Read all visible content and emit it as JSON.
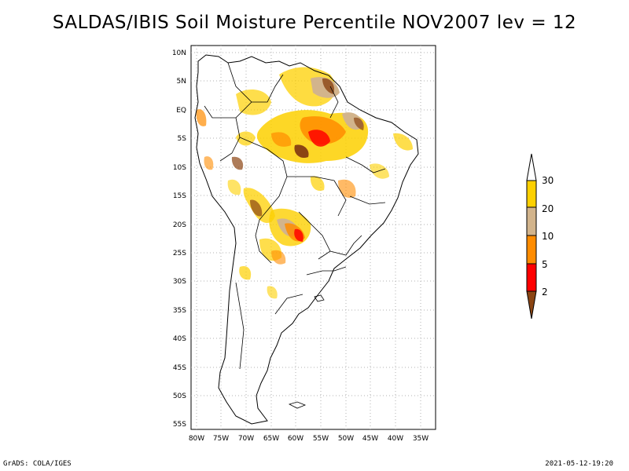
{
  "title": "SALDAS/IBIS Soil Moisture Percentile NOV2007 lev = 12",
  "map": {
    "lat_labels": [
      "10N",
      "5N",
      "EQ",
      "5S",
      "10S",
      "15S",
      "20S",
      "25S",
      "30S",
      "35S",
      "40S",
      "45S",
      "50S",
      "55S"
    ],
    "lon_labels": [
      "80W",
      "75W",
      "70W",
      "65W",
      "60W",
      "55W",
      "50W",
      "45W",
      "40W",
      "35W"
    ]
  },
  "legend": {
    "labels": [
      "30",
      "20",
      "10",
      "5",
      "2"
    ],
    "colors": {
      "above": "#ffffff",
      "yellow": "#fdd000",
      "tan": "#d2b48c",
      "orange": "#ff8c00",
      "red": "#ff0000",
      "brown": "#8b4513"
    }
  },
  "footer": {
    "left": "GrADS: COLA/IGES",
    "right": "2021-05-12-19:20"
  }
}
